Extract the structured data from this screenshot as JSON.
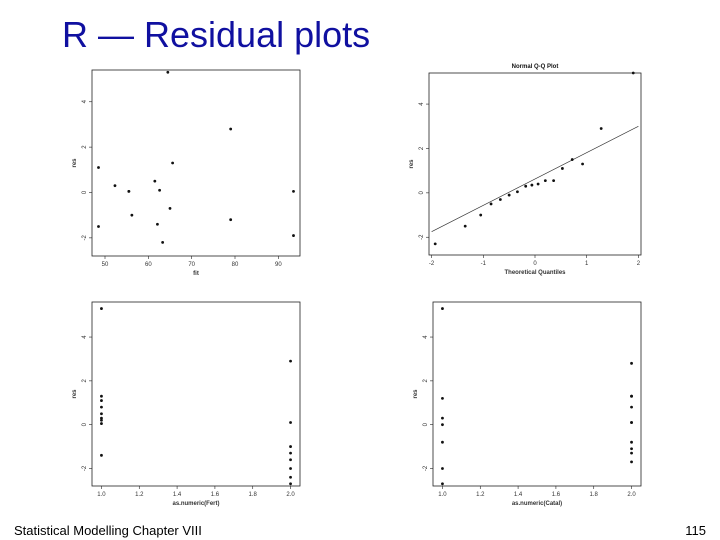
{
  "slide": {
    "title": "R — Residual plots",
    "footer_left": "Statistical Modelling   Chapter VIII",
    "page_number": "115"
  },
  "chart_data": [
    {
      "type": "scatter",
      "title": "",
      "xlabel": "fit",
      "ylabel": "res",
      "xlim": [
        47,
        95
      ],
      "ylim": [
        -2.8,
        5.4
      ],
      "xticks": [
        50,
        60,
        70,
        80,
        90
      ],
      "yticks": [
        -2,
        0,
        2,
        4
      ],
      "x": [
        48.5,
        48.5,
        52.3,
        55.5,
        55.5,
        56.2,
        61.5,
        62.1,
        62.6,
        63.3,
        64.5,
        65.6,
        65.0,
        79.0,
        79.0,
        93.5,
        93.5
      ],
      "y": [
        1.1,
        -1.5,
        0.3,
        0.05,
        0.05,
        -1.0,
        0.5,
        -1.4,
        0.1,
        -2.2,
        5.3,
        1.3,
        -0.7,
        2.8,
        -1.2,
        0.05,
        -1.9
      ]
    },
    {
      "type": "scatter",
      "title": "Normal Q-Q Plot",
      "xlabel": "Theoretical Quantiles",
      "ylabel": "res",
      "xlim": [
        -2.05,
        2.05
      ],
      "ylim": [
        -2.8,
        5.4
      ],
      "xticks": [
        -2,
        -1,
        0,
        1,
        2
      ],
      "yticks": [
        -2,
        0,
        2,
        4
      ],
      "x": [
        -1.93,
        -1.35,
        -1.05,
        -0.85,
        -0.67,
        -0.5,
        -0.34,
        -0.18,
        -0.06,
        0.06,
        0.2,
        0.36,
        0.53,
        0.72,
        0.92,
        1.28,
        1.9
      ],
      "y": [
        -2.3,
        -1.5,
        -1.0,
        -0.5,
        -0.3,
        -0.1,
        0.05,
        0.3,
        0.35,
        0.4,
        0.55,
        0.55,
        1.1,
        1.5,
        1.3,
        2.9,
        5.4
      ],
      "reference_line": {
        "x": [
          -2,
          2
        ],
        "y": [
          -1.75,
          3.0
        ]
      }
    },
    {
      "type": "scatter",
      "title": "",
      "xlabel": "as.numeric(Fert)",
      "ylabel": "res",
      "xlim": [
        0.95,
        2.05
      ],
      "ylim": [
        -2.8,
        5.6
      ],
      "xticks": [
        "1.0",
        "1.2",
        "1.4",
        "1.6",
        "1.8",
        "2.0"
      ],
      "yticks": [
        -2,
        0,
        2,
        4
      ],
      "x": [
        1.0,
        1.0,
        1.0,
        1.0,
        1.0,
        1.0,
        1.0,
        1.0,
        1.0,
        2.0,
        2.0,
        2.0,
        2.0,
        2.0,
        2.0,
        2.0,
        2.0
      ],
      "y": [
        5.3,
        1.3,
        1.1,
        0.8,
        0.5,
        0.3,
        0.2,
        0.05,
        -1.4,
        2.9,
        0.1,
        -1.0,
        -1.3,
        -1.6,
        -2.0,
        -2.4,
        -2.7
      ]
    },
    {
      "type": "scatter",
      "title": "",
      "xlabel": "as.numeric(Catal)",
      "ylabel": "res",
      "xlim": [
        0.95,
        2.05
      ],
      "ylim": [
        -2.8,
        5.6
      ],
      "xticks": [
        "1.0",
        "1.2",
        "1.4",
        "1.6",
        "1.8",
        "2.0"
      ],
      "yticks": [
        -2,
        0,
        2,
        4
      ],
      "x": [
        1.0,
        1.0,
        1.0,
        1.0,
        1.0,
        1.0,
        1.0,
        2.0,
        2.0,
        2.0,
        2.0,
        2.0,
        2.0,
        2.0,
        2.0,
        2.0,
        2.0
      ],
      "y": [
        5.3,
        1.2,
        0.3,
        0.0,
        -0.8,
        -2.0,
        -2.7,
        2.8,
        1.3,
        1.3,
        0.8,
        0.1,
        0.1,
        -0.8,
        -1.1,
        -1.3,
        -1.7
      ]
    }
  ]
}
